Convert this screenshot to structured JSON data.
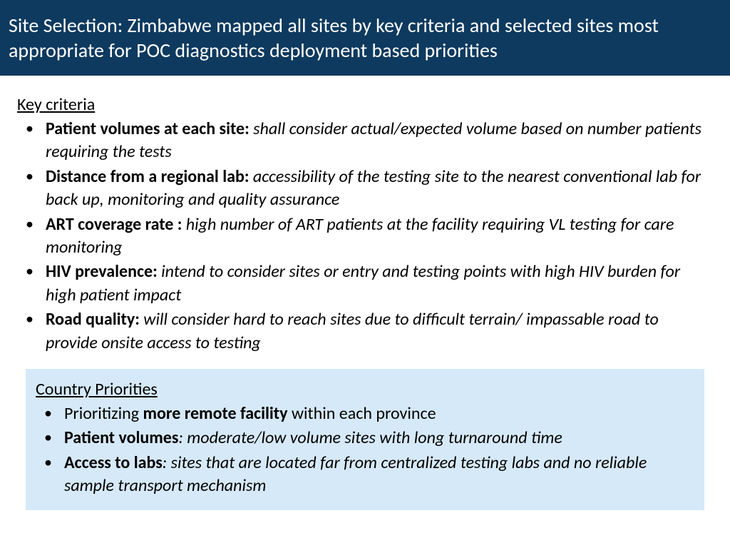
{
  "header": {
    "title": "Site Selection: Zimbabwe mapped all sites by key criteria and selected sites most appropriate for POC diagnostics deployment based priorities"
  },
  "colors": {
    "header_bg": "#0e3a5f",
    "header_text": "#ffffff",
    "body_bg": "#ffffff",
    "body_text": "#000000",
    "box_bg": "#d6e9f8"
  },
  "key_criteria": {
    "heading": "Key criteria",
    "items": [
      {
        "label": "Patient volumes at each site:",
        "desc": "  shall consider actual/expected volume based on number patients requiring the tests"
      },
      {
        "label": "Distance from a regional lab:",
        "desc": "  accessibility of the testing site to the nearest conventional lab for back up, monitoring and quality assurance"
      },
      {
        "label": "ART coverage rate :",
        "desc": " high number of ART patients at the facility requiring VL testing for  care monitoring"
      },
      {
        "label": "HIV prevalence:",
        "desc": "  intend to consider sites or entry and testing points with high HIV burden for high patient impact"
      },
      {
        "label": "Road quality:",
        "desc": "  will consider hard to reach sites due to difficult terrain/ impassable road to provide onsite access to testing"
      }
    ]
  },
  "country_priorities": {
    "heading": "Country Priorities",
    "items": [
      {
        "prefix": "Prioritizing ",
        "bold": "more remote facility",
        "suffix": " within each province"
      },
      {
        "label": "Patient volumes",
        "desc": ": moderate/low volume sites with long turnaround time"
      },
      {
        "label": "Access to labs",
        "desc": ":  sites that are located far from centralized  testing labs and no reliable sample transport mechanism"
      }
    ]
  }
}
